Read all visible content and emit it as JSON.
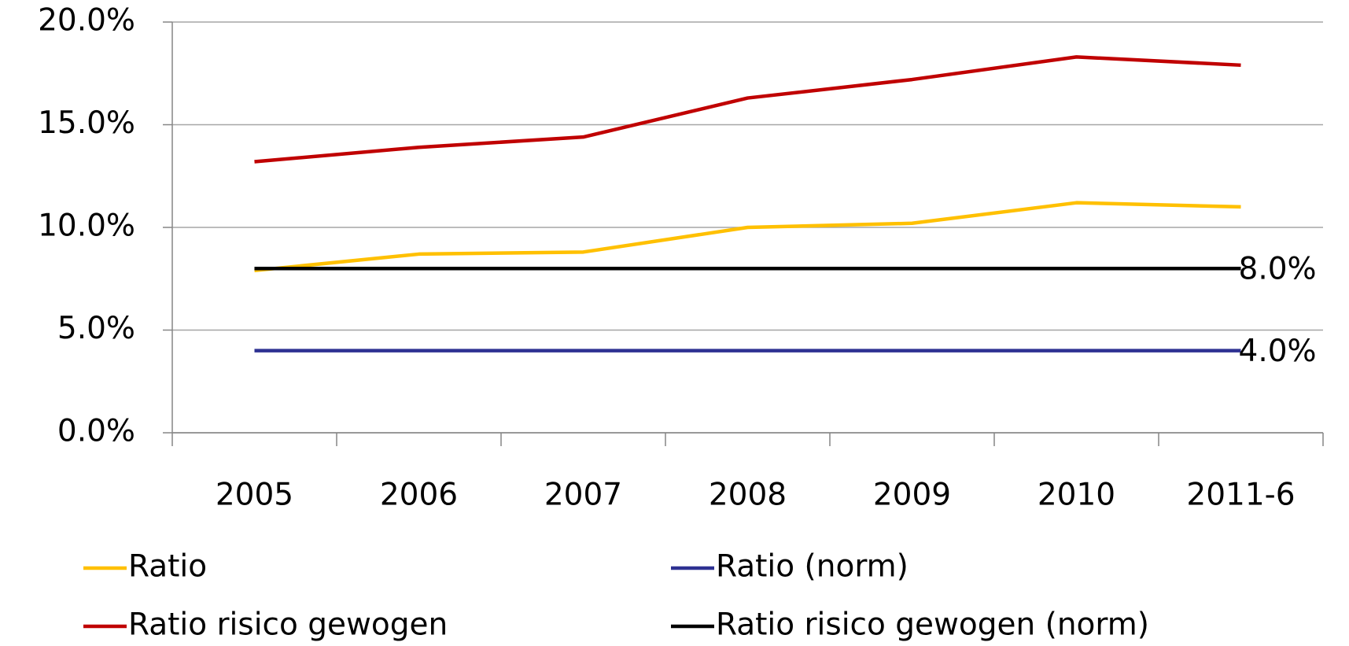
{
  "chart_data": {
    "type": "line",
    "categories": [
      "2005",
      "2006",
      "2007",
      "2008",
      "2009",
      "2010",
      "2011-6"
    ],
    "series": [
      {
        "name": "Ratio",
        "color": "#ffc000",
        "values": [
          7.9,
          8.7,
          8.8,
          10.0,
          10.2,
          11.2,
          11.0
        ]
      },
      {
        "name": "Ratio (norm)",
        "color": "#2e3192",
        "values": [
          4.0,
          4.0,
          4.0,
          4.0,
          4.0,
          4.0,
          4.0
        ],
        "value_labels": [
          null,
          null,
          null,
          null,
          null,
          null,
          "4.0%"
        ]
      },
      {
        "name": "Ratio risico gewogen",
        "color": "#c00000",
        "values": [
          13.2,
          13.9,
          14.4,
          16.3,
          17.2,
          18.3,
          17.9
        ]
      },
      {
        "name": "Ratio risico gewogen (norm)",
        "color": "#000000",
        "values": [
          8.0,
          8.0,
          8.0,
          8.0,
          8.0,
          8.0,
          8.0
        ],
        "value_labels": [
          null,
          null,
          null,
          null,
          null,
          null,
          "8.0%"
        ]
      }
    ],
    "ylim": [
      0,
      20
    ],
    "yticks": [
      {
        "value": 0,
        "label": "0.0%"
      },
      {
        "value": 5,
        "label": "5.0%"
      },
      {
        "value": 10,
        "label": "10.0%"
      },
      {
        "value": 15,
        "label": "15.0%"
      },
      {
        "value": 20,
        "label": "20.0%"
      }
    ],
    "grid": true,
    "legend": "bottom"
  }
}
